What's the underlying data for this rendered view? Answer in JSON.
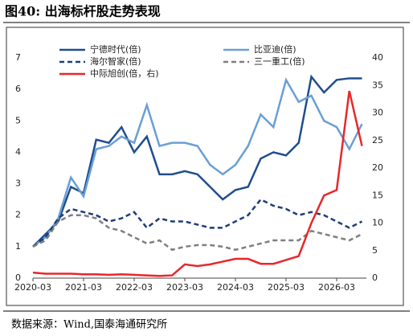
{
  "title": "图40:  出海标杆股走势表现",
  "source": "数据来源：Wind,国泰海通研究所",
  "chart_data": {
    "type": "line",
    "categories": [
      "2020-03",
      null,
      null,
      null,
      "2021-03",
      null,
      null,
      null,
      "2022-03",
      null,
      null,
      null,
      "2023-03",
      null,
      null,
      null,
      "2024-03",
      null,
      null,
      null,
      "2025-03",
      null,
      null,
      null,
      "2026-03",
      null,
      null
    ],
    "series": [
      {
        "name": "宁德时代(倍)",
        "color": "#1f4e8c",
        "style": "solid",
        "values": [
          1.0,
          1.4,
          1.8,
          2.9,
          2.7,
          4.4,
          4.3,
          4.8,
          4.0,
          4.5,
          3.3,
          3.3,
          3.4,
          3.3,
          2.9,
          2.5,
          2.8,
          2.9,
          3.8,
          4.0,
          3.9,
          4.3,
          6.4,
          5.9,
          6.3,
          6.35,
          6.35
        ]
      },
      {
        "name": "比亚迪(倍)",
        "color": "#6a9fd4",
        "style": "solid",
        "values": [
          1.0,
          1.3,
          1.9,
          3.2,
          2.6,
          4.1,
          4.2,
          4.5,
          4.3,
          5.5,
          4.2,
          4.3,
          4.3,
          4.2,
          3.6,
          3.3,
          3.6,
          4.2,
          5.2,
          4.8,
          6.3,
          5.6,
          5.8,
          5.0,
          4.8,
          4.1,
          4.9
        ]
      },
      {
        "name": "海尔智家(倍)",
        "color": "#1f3d7a",
        "style": "dashed",
        "values": [
          1.0,
          1.3,
          1.9,
          2.2,
          2.1,
          2.0,
          1.8,
          1.9,
          2.1,
          1.6,
          1.9,
          1.8,
          1.8,
          1.7,
          1.6,
          1.6,
          1.8,
          2.0,
          2.5,
          2.3,
          2.2,
          2.0,
          2.1,
          2.0,
          1.8,
          1.6,
          1.8
        ]
      },
      {
        "name": "三一重工(倍)",
        "color": "#7f7f7f",
        "style": "dashed",
        "values": [
          1.0,
          1.2,
          1.8,
          2.0,
          2.0,
          1.9,
          1.6,
          1.5,
          1.3,
          1.1,
          1.2,
          0.9,
          1.0,
          1.05,
          1.05,
          1.0,
          0.9,
          1.0,
          1.1,
          1.2,
          1.2,
          1.2,
          1.5,
          1.4,
          1.3,
          1.2,
          1.4
        ]
      },
      {
        "name": "中际旭创(倍，右)",
        "color": "#e8272a",
        "style": "solid",
        "axis": "y2",
        "values": [
          1.0,
          0.8,
          0.8,
          0.8,
          0.7,
          0.7,
          0.6,
          0.7,
          0.6,
          0.5,
          0.4,
          0.5,
          2.5,
          2.2,
          2.5,
          3.0,
          3.5,
          3.5,
          2.6,
          2.6,
          3.3,
          4.0,
          10,
          15,
          16,
          34,
          24
        ]
      }
    ],
    "ylim": [
      0,
      7
    ],
    "yticks": [
      0,
      1,
      2,
      3,
      4,
      5,
      6,
      7
    ],
    "y2lim": [
      0,
      40
    ],
    "y2ticks": [
      0,
      5,
      10,
      15,
      20,
      25,
      30,
      35,
      40
    ],
    "grid": false
  }
}
